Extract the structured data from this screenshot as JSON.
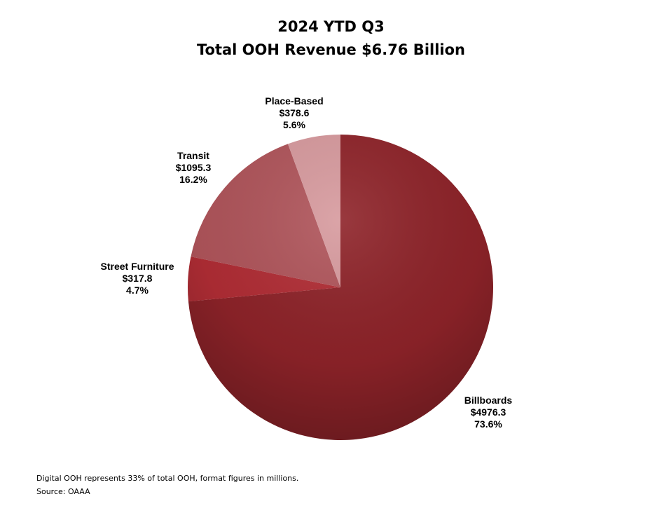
{
  "chart_data": {
    "type": "pie",
    "title": "2024 YTD Q3",
    "subtitle": "Total OOH Revenue $6.76 Billion",
    "slices": [
      {
        "name": "Billboards",
        "value": 4976.3,
        "value_label": "$4976.3",
        "percent": 73.6,
        "percent_label": "73.6%",
        "color": "#8e2329"
      },
      {
        "name": "Street Furniture",
        "value": 317.8,
        "value_label": "$317.8",
        "percent": 4.7,
        "percent_label": "4.7%",
        "color": "#b12d35"
      },
      {
        "name": "Transit",
        "value": 1095.3,
        "value_label": "$1095.3",
        "percent": 16.2,
        "percent_label": "16.2%",
        "color": "#b0555b"
      },
      {
        "name": "Place-Based",
        "value": 378.6,
        "value_label": "$378.6",
        "percent": 5.6,
        "percent_label": "5.6%",
        "color": "#d79a9e"
      }
    ],
    "start_angle": "12 o'clock",
    "direction": "clockwise",
    "legend": "none"
  },
  "footnotes": {
    "note": "Digital OOH represents 33% of total OOH, format figures in millions.",
    "source": "Source: OAAA"
  }
}
